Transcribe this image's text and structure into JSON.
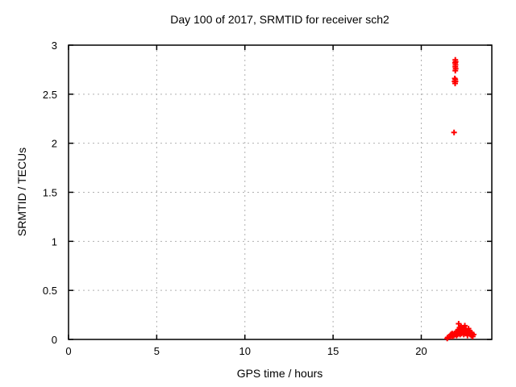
{
  "window": {
    "background": "#ffffff"
  },
  "chart_data": {
    "type": "scatter",
    "title": "Day 100 of 2017, SRMTID for receiver sch2",
    "xlabel": "GPS time / hours",
    "ylabel": "SRMTID / TECUs",
    "xlim": [
      0,
      24
    ],
    "ylim": [
      0,
      3
    ],
    "xticks": [
      0,
      5,
      10,
      15,
      20
    ],
    "yticks": [
      0,
      0.5,
      1,
      1.5,
      2,
      2.5,
      3
    ],
    "grid": true,
    "grid_color": "#b0b0b0",
    "axis_color": "#000000",
    "marker": "plus",
    "marker_color": "#ff0000",
    "series": [
      {
        "name": "SRMTID",
        "color": "#ff0000",
        "points": [
          [
            21.93,
            2.85
          ],
          [
            21.95,
            2.83
          ],
          [
            21.92,
            2.82
          ],
          [
            21.94,
            2.8
          ],
          [
            21.93,
            2.78
          ],
          [
            21.95,
            2.76
          ],
          [
            21.93,
            2.74
          ],
          [
            21.9,
            2.66
          ],
          [
            21.93,
            2.65
          ],
          [
            21.89,
            2.63
          ],
          [
            21.94,
            2.63
          ],
          [
            21.92,
            2.61
          ],
          [
            21.86,
            2.11
          ],
          [
            21.47,
            0.01
          ],
          [
            21.5,
            0.02
          ],
          [
            21.65,
            0.03
          ],
          [
            21.68,
            0.05
          ],
          [
            21.72,
            0.04
          ],
          [
            21.75,
            0.06
          ],
          [
            21.78,
            0.03
          ],
          [
            21.82,
            0.05
          ],
          [
            21.85,
            0.04
          ],
          [
            21.88,
            0.06
          ],
          [
            21.92,
            0.05
          ],
          [
            21.96,
            0.07
          ],
          [
            22.0,
            0.04
          ],
          [
            22.03,
            0.08
          ],
          [
            22.06,
            0.05
          ],
          [
            22.09,
            0.1
          ],
          [
            22.12,
            0.16
          ],
          [
            22.14,
            0.07
          ],
          [
            22.17,
            0.12
          ],
          [
            22.2,
            0.05
          ],
          [
            22.23,
            0.09
          ],
          [
            22.26,
            0.13
          ],
          [
            22.29,
            0.06
          ],
          [
            22.32,
            0.1
          ],
          [
            22.35,
            0.08
          ],
          [
            22.38,
            0.12
          ],
          [
            22.41,
            0.05
          ],
          [
            22.44,
            0.09
          ],
          [
            22.47,
            0.14
          ],
          [
            22.5,
            0.07
          ],
          [
            22.53,
            0.11
          ],
          [
            22.56,
            0.06
          ],
          [
            22.59,
            0.09
          ],
          [
            22.62,
            0.04
          ],
          [
            22.65,
            0.08
          ],
          [
            22.68,
            0.11
          ],
          [
            22.71,
            0.06
          ],
          [
            22.74,
            0.09
          ],
          [
            22.77,
            0.05
          ],
          [
            22.8,
            0.07
          ],
          [
            22.84,
            0.04
          ],
          [
            22.88,
            0.06
          ],
          [
            22.92,
            0.03
          ],
          [
            22.97,
            0.05
          ]
        ]
      }
    ]
  }
}
